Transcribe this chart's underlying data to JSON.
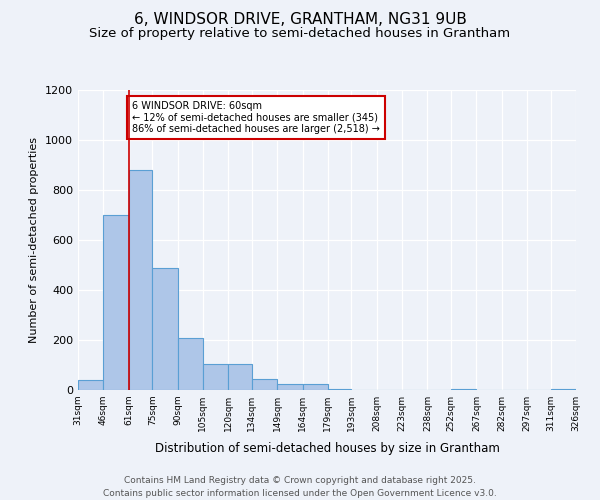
{
  "title1": "6, WINDSOR DRIVE, GRANTHAM, NG31 9UB",
  "title2": "Size of property relative to semi-detached houses in Grantham",
  "xlabel": "Distribution of semi-detached houses by size in Grantham",
  "ylabel": "Number of semi-detached properties",
  "bar_values": [
    40,
    700,
    880,
    490,
    210,
    105,
    105,
    45,
    25,
    25,
    5,
    0,
    0,
    0,
    0,
    5,
    0,
    0,
    0,
    5
  ],
  "bin_labels": [
    "31sqm",
    "46sqm",
    "61sqm",
    "75sqm",
    "90sqm",
    "105sqm",
    "120sqm",
    "134sqm",
    "149sqm",
    "164sqm",
    "179sqm",
    "193sqm",
    "208sqm",
    "223sqm",
    "238sqm",
    "252sqm",
    "267sqm",
    "282sqm",
    "297sqm",
    "311sqm",
    "326sqm"
  ],
  "bin_edges": [
    31,
    46,
    61,
    75,
    90,
    105,
    120,
    134,
    149,
    164,
    179,
    193,
    208,
    223,
    238,
    252,
    267,
    282,
    297,
    311,
    326
  ],
  "bar_color": "#aec6e8",
  "bar_edge_color": "#5a9fd4",
  "property_line_x": 61,
  "property_sqm": 60,
  "annotation_text": "6 WINDSOR DRIVE: 60sqm\n← 12% of semi-detached houses are smaller (345)\n86% of semi-detached houses are larger (2,518) →",
  "annotation_box_color": "#ffffff",
  "annotation_box_edge": "#cc0000",
  "property_line_color": "#cc0000",
  "ylim": [
    0,
    1200
  ],
  "yticks": [
    0,
    200,
    400,
    600,
    800,
    1000,
    1200
  ],
  "bg_color": "#eef2f9",
  "footer": "Contains HM Land Registry data © Crown copyright and database right 2025.\nContains public sector information licensed under the Open Government Licence v3.0.",
  "title1_fontsize": 11,
  "title2_fontsize": 9.5,
  "xlabel_fontsize": 8.5,
  "ylabel_fontsize": 8,
  "footer_fontsize": 6.5
}
